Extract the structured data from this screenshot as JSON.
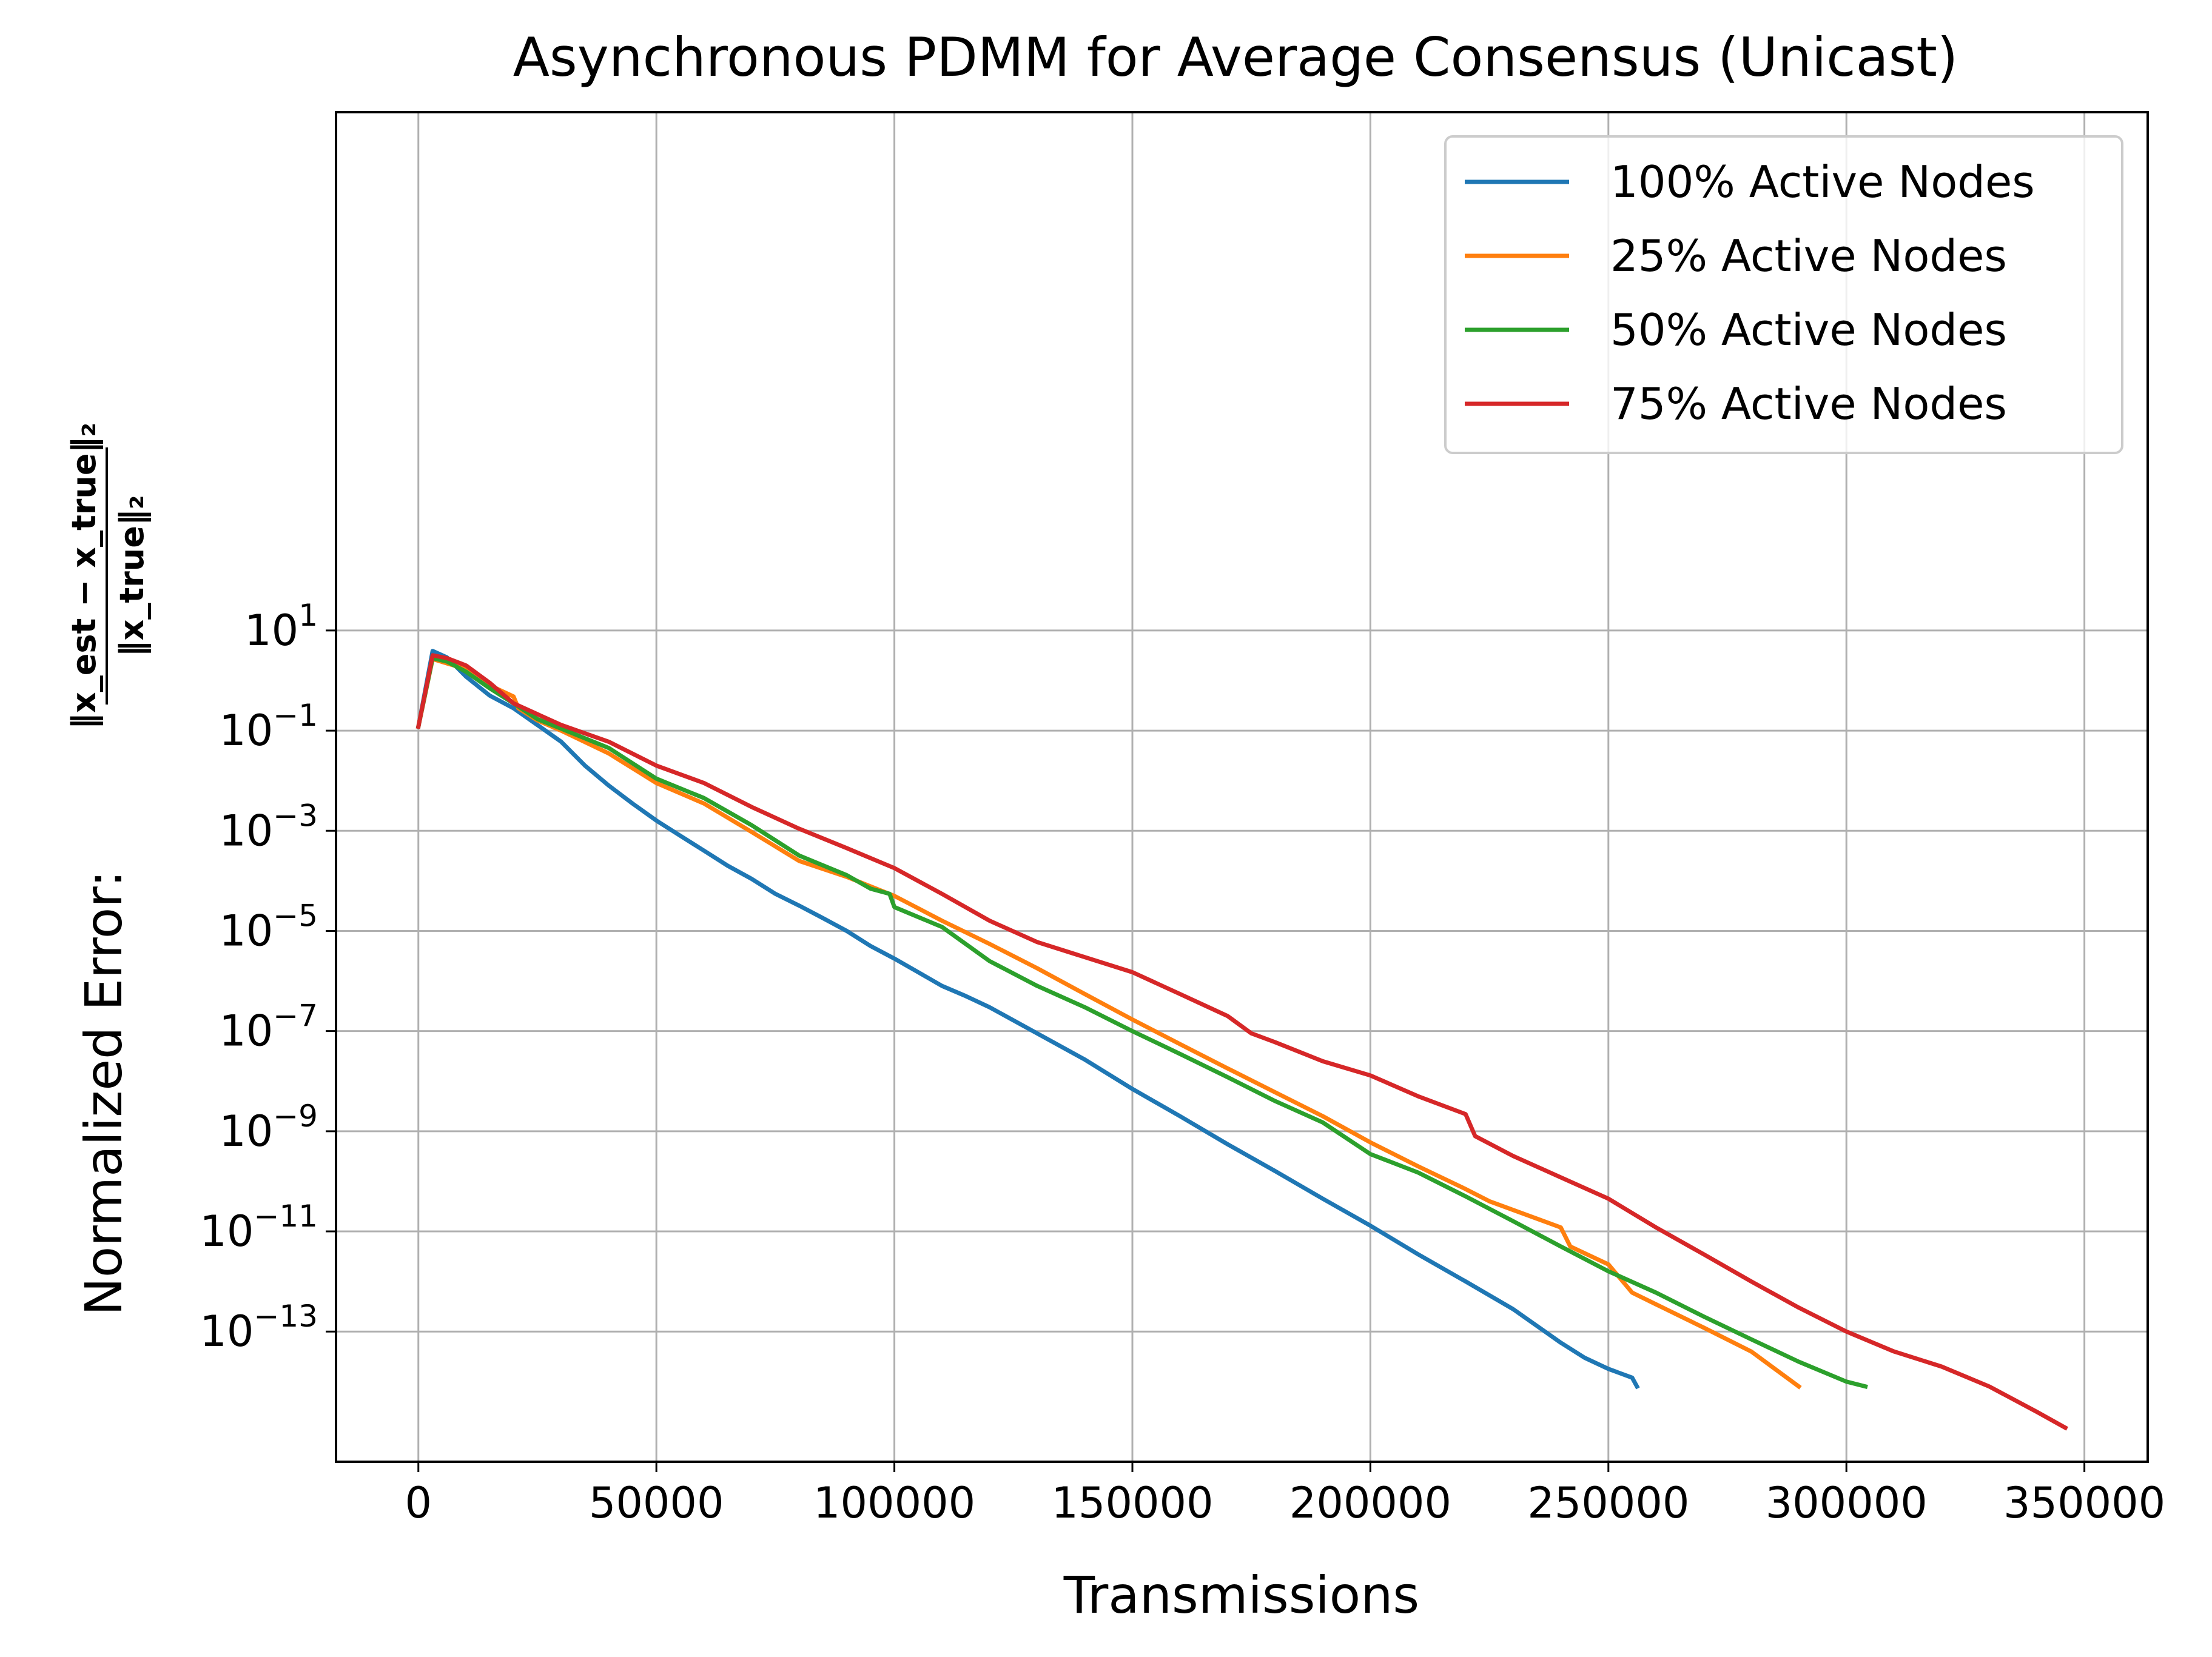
{
  "chart_data": {
    "type": "line",
    "title": "Asynchronous PDMM for Average Consensus (Unicast)",
    "xlabel": "Transmissions",
    "ylabel_prefix": "Normalized Error:",
    "ylabel_fraction": {
      "numerator": "‖x_est − x_true‖₂",
      "denominator": "‖x_true‖₂"
    },
    "xscale": "linear",
    "yscale": "log",
    "xlim": [
      -17300,
      363300
    ],
    "ylim_exponent": [
      -15.6,
      11.35
    ],
    "grid": true,
    "legend_loc": "upper right",
    "x_ticks": [
      0,
      50000,
      100000,
      150000,
      200000,
      250000,
      300000,
      350000
    ],
    "x_tick_labels": [
      "0",
      "50000",
      "100000",
      "150000",
      "200000",
      "250000",
      "300000",
      "350000"
    ],
    "y_ticks": [
      10.0,
      0.1,
      0.001,
      1e-05,
      1e-07,
      1e-09,
      1e-11,
      1e-13
    ],
    "y_tick_labels": [
      {
        "base": "10",
        "exp": "1"
      },
      {
        "base": "10",
        "exp": "−1"
      },
      {
        "base": "10",
        "exp": "−3"
      },
      {
        "base": "10",
        "exp": "−5"
      },
      {
        "base": "10",
        "exp": "−7"
      },
      {
        "base": "10",
        "exp": "−9"
      },
      {
        "base": "10",
        "exp": "−11"
      },
      {
        "base": "10",
        "exp": "−13"
      }
    ],
    "series": [
      {
        "name": "100% Active Nodes",
        "color": "#1f77b4",
        "x": [
          0,
          3000,
          6000,
          10000,
          15000,
          20000,
          25000,
          30000,
          35000,
          40000,
          45000,
          50000,
          55000,
          60000,
          65000,
          70000,
          75000,
          80000,
          85000,
          90000,
          95000,
          100000,
          105000,
          110000,
          115000,
          120000,
          130000,
          140000,
          150000,
          160000,
          170000,
          180000,
          190000,
          200000,
          210000,
          220000,
          230000,
          240000,
          245000,
          250000,
          255000,
          256000
        ],
        "y": [
          0.12,
          3.9,
          2.9,
          1.2,
          0.5,
          0.28,
          0.13,
          0.06,
          0.02,
          0.008,
          0.0035,
          0.0016,
          0.0008,
          0.0004,
          0.0002,
          0.00011,
          5.5e-05,
          3.2e-05,
          1.8e-05,
          1e-05,
          5e-06,
          2.8e-06,
          1.5e-06,
          8e-07,
          5e-07,
          3e-07,
          9e-08,
          2.7e-08,
          7e-09,
          2e-09,
          5.5e-10,
          1.6e-10,
          4.5e-11,
          1.3e-11,
          3.5e-12,
          1e-12,
          2.8e-13,
          6e-14,
          3e-14,
          1.8e-14,
          1.2e-14,
          8e-15
        ]
      },
      {
        "name": "25% Active Nodes",
        "color": "#ff7f0e",
        "x": [
          0,
          3000,
          6000,
          10000,
          15000,
          20000,
          21000,
          25000,
          30000,
          40000,
          50000,
          60000,
          70000,
          80000,
          90000,
          100000,
          110000,
          120000,
          130000,
          140000,
          150000,
          160000,
          170000,
          180000,
          190000,
          200000,
          210000,
          220000,
          225000,
          240000,
          242000,
          250000,
          255000,
          260000,
          270000,
          280000,
          290000
        ],
        "y": [
          0.12,
          2.7,
          2.2,
          1.7,
          0.8,
          0.48,
          0.28,
          0.16,
          0.1,
          0.035,
          0.009,
          0.0035,
          0.00095,
          0.00025,
          0.00012,
          5e-05,
          1.6e-05,
          5.5e-06,
          1.8e-06,
          5.5e-07,
          1.7e-07,
          5.5e-08,
          1.8e-08,
          6e-09,
          2e-09,
          6e-10,
          2e-10,
          7e-11,
          4e-11,
          1.2e-11,
          5e-12,
          2.2e-12,
          6e-13,
          3.5e-13,
          1.2e-13,
          4e-14,
          8e-15
        ]
      },
      {
        "name": "50% Active Nodes",
        "color": "#2ca02c",
        "x": [
          0,
          3000,
          6000,
          10000,
          15000,
          20000,
          25000,
          30000,
          40000,
          50000,
          60000,
          70000,
          80000,
          90000,
          95000,
          99000,
          100000,
          110000,
          120000,
          130000,
          140000,
          150000,
          160000,
          170000,
          180000,
          190000,
          200000,
          210000,
          220000,
          230000,
          240000,
          250000,
          260000,
          270000,
          280000,
          290000,
          300000,
          304000
        ],
        "y": [
          0.12,
          2.8,
          2.4,
          1.5,
          0.7,
          0.35,
          0.17,
          0.11,
          0.045,
          0.011,
          0.0045,
          0.0013,
          0.00032,
          0.00013,
          7e-05,
          5.5e-05,
          3e-05,
          1.2e-05,
          2.5e-06,
          8e-07,
          3e-07,
          1e-07,
          3.5e-08,
          1.2e-08,
          4e-09,
          1.5e-09,
          3.5e-10,
          1.5e-10,
          5e-11,
          1.6e-11,
          5e-12,
          1.6e-12,
          6e-13,
          2e-13,
          7e-14,
          2.5e-14,
          1e-14,
          8e-15
        ]
      },
      {
        "name": "75% Active Nodes",
        "color": "#d62728",
        "x": [
          0,
          3000,
          6000,
          10000,
          15000,
          20000,
          30000,
          40000,
          50000,
          60000,
          70000,
          80000,
          90000,
          100000,
          110000,
          120000,
          130000,
          140000,
          150000,
          160000,
          170000,
          175000,
          180000,
          190000,
          200000,
          210000,
          220000,
          222000,
          230000,
          240000,
          250000,
          260000,
          270000,
          280000,
          290000,
          300000,
          310000,
          320000,
          330000,
          340000,
          346000
        ],
        "y": [
          0.12,
          3.2,
          2.8,
          2.0,
          0.9,
          0.35,
          0.13,
          0.06,
          0.02,
          0.009,
          0.003,
          0.0011,
          0.00045,
          0.00018,
          5.5e-05,
          1.6e-05,
          6e-06,
          3e-06,
          1.5e-06,
          5.5e-07,
          2e-07,
          9e-08,
          6e-08,
          2.5e-08,
          1.3e-08,
          5e-09,
          2.2e-09,
          8e-10,
          3.2e-10,
          1.2e-10,
          4.5e-11,
          1.2e-11,
          3.5e-12,
          1e-12,
          3e-13,
          1e-13,
          4e-14,
          2e-14,
          8e-15,
          2.5e-15,
          1.2e-15
        ]
      }
    ]
  }
}
